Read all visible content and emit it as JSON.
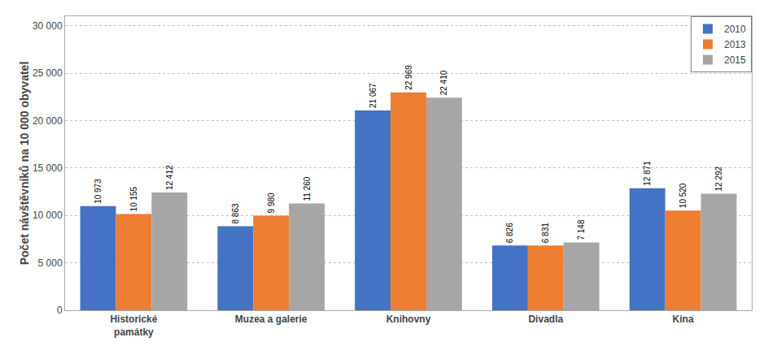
{
  "chart_data": {
    "type": "bar",
    "categories": [
      "Historické\npamátky",
      "Muzea a galerie",
      "Knihovny",
      "Divadla",
      "Kina"
    ],
    "series": [
      {
        "name": "2010",
        "color": "#4472C4",
        "values": [
          10973,
          8863,
          21067,
          6826,
          12871
        ],
        "value_labels": [
          "10 973",
          "8 863",
          "21 067",
          "6 826",
          "12 871"
        ]
      },
      {
        "name": "2013",
        "color": "#ED7D31",
        "values": [
          10155,
          9980,
          22969,
          6831,
          10520
        ],
        "value_labels": [
          "10 155",
          "9 980",
          "22 969",
          "6 831",
          "10 520"
        ]
      },
      {
        "name": "2015",
        "color": "#A6A6A6",
        "values": [
          12412,
          11260,
          22410,
          7148,
          12292
        ],
        "value_labels": [
          "12 412",
          "11 260",
          "22 410",
          "7 148",
          "12 292"
        ]
      }
    ],
    "ylabel": "Počet návštěvníků na 10 000 obyvatel",
    "ylim": [
      0,
      31000
    ],
    "yticks": [
      0,
      {
        "value": 5000,
        "label": "5 000"
      },
      {
        "value": 10000,
        "label": "10 000"
      },
      {
        "value": 15000,
        "label": "15 000"
      },
      {
        "value": 20000,
        "label": "20 000"
      },
      {
        "value": 25000,
        "label": "25 000"
      },
      {
        "value": 30000,
        "label": "30 000"
      }
    ],
    "grid": true,
    "legend": "upper right",
    "data_labels": true
  }
}
